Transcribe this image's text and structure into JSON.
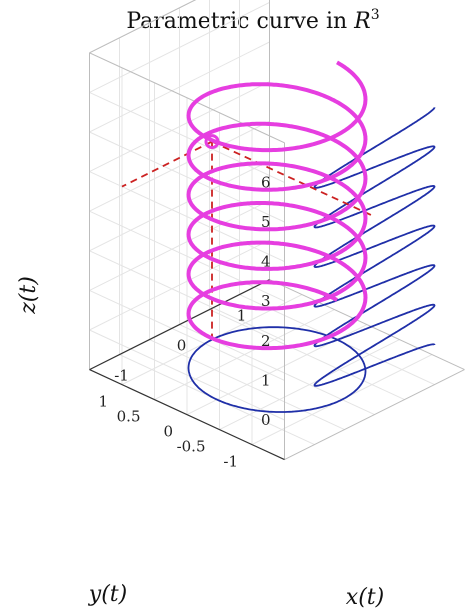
{
  "chart_data": {
    "type": "line3d",
    "title": "Parametric curve in ",
    "title_math": "R",
    "title_sup": "3",
    "xlabel": "x(t)",
    "ylabel": "y(t)",
    "zlabel": "z(t)",
    "xlim": [
      -1.5,
      1.5
    ],
    "ylim": [
      -1.5,
      1.5
    ],
    "zlim": [
      -1,
      7
    ],
    "xticks": [
      "-1",
      "0",
      "1"
    ],
    "yticks": [
      "-1",
      "-0.5",
      "0",
      "0.5",
      "1"
    ],
    "zticks": [
      "0",
      "1",
      "2",
      "3",
      "4",
      "5",
      "6"
    ],
    "grid": true,
    "curve": {
      "definition": "x=cos(2πz), y=sin(2πz), z∈[0,6]",
      "z_range": [
        0,
        6
      ],
      "turns": 6,
      "color": "#e63ee0"
    },
    "xz_projection": {
      "definition": "projection onto plane y = -1.5, drawn for z∈[0,6]",
      "color": "#1f2fa8"
    },
    "xy_projection": {
      "definition": "unit circle on plane z = -1",
      "color": "#1f2fa8"
    },
    "point": {
      "x": 0,
      "y": 1,
      "z": 4,
      "color": "#e63ee0"
    },
    "guide_color": "#cc2222"
  }
}
